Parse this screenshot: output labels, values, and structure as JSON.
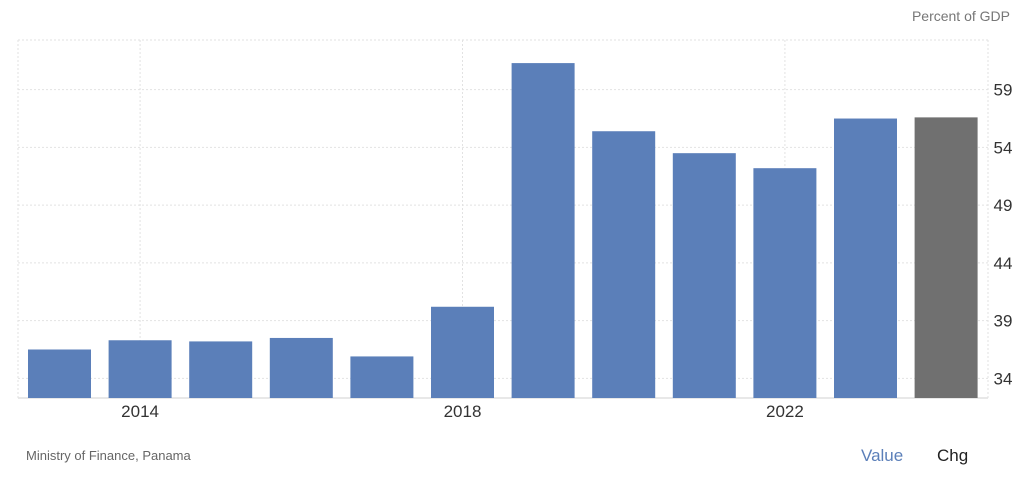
{
  "chart_data": {
    "type": "bar",
    "unit_label": "Percent of GDP",
    "categories": [
      "2013",
      "2014",
      "2015",
      "2016",
      "2017",
      "2018",
      "2019",
      "2020",
      "2021",
      "2022",
      "2023",
      "2024"
    ],
    "values": [
      36.5,
      37.3,
      37.2,
      37.5,
      35.9,
      40.2,
      61.3,
      55.4,
      53.5,
      52.2,
      56.5,
      56.6
    ],
    "x_tick_labels": [
      "2014",
      "2018",
      "2022"
    ],
    "y_ticks": [
      34,
      39,
      44,
      49,
      54,
      59
    ],
    "ylim": [
      32.3,
      63.3
    ],
    "y_axis_side": "right",
    "grid": true,
    "colors": {
      "bar": "#5b7fb9",
      "forecast_bar": "#707070",
      "grid": "#e2e2e2"
    },
    "highlighted_index": 11
  },
  "footer": {
    "source": "Ministry of Finance, Panama",
    "value_toggle": "Value",
    "chg_toggle": "Chg",
    "value_color": "#5b7fb9",
    "chg_color": "#222222"
  }
}
